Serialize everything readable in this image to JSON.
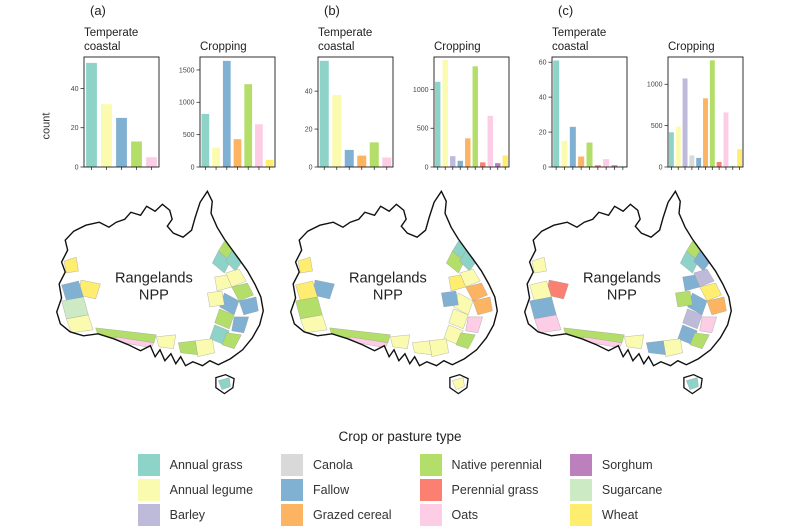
{
  "figure": {
    "y_axis_label": "count",
    "map_label": [
      "Rangelands",
      "NPP"
    ],
    "panels": [
      {
        "label": "(a)"
      },
      {
        "label": "(b)"
      },
      {
        "label": "(c)"
      }
    ],
    "legend": {
      "title": "Crop or pasture type",
      "columns": [
        [
          {
            "key": "annual_grass",
            "label": "Annual grass"
          },
          {
            "key": "annual_legume",
            "label": "Annual legume"
          },
          {
            "key": "barley",
            "label": "Barley"
          }
        ],
        [
          {
            "key": "canola",
            "label": "Canola"
          },
          {
            "key": "fallow",
            "label": "Fallow"
          },
          {
            "key": "grazed_cereal",
            "label": "Grazed cereal"
          }
        ],
        [
          {
            "key": "native_perennial",
            "label": "Native perennial"
          },
          {
            "key": "perennial_grass",
            "label": "Perennial grass"
          },
          {
            "key": "oats",
            "label": "Oats"
          }
        ],
        [
          {
            "key": "sorghum",
            "label": "Sorghum"
          },
          {
            "key": "sugarcane",
            "label": "Sugarcane"
          },
          {
            "key": "wheat",
            "label": "Wheat"
          }
        ]
      ]
    }
  },
  "palette": {
    "annual_grass": "#8dd3c7",
    "annual_legume": "#fbfbb0",
    "barley": "#bebada",
    "canola": "#d9d9d9",
    "fallow": "#80b1d3",
    "grazed_cereal": "#fdb462",
    "native_perennial": "#b3de69",
    "perennial_grass": "#fb8072",
    "oats": "#fccde5",
    "sorghum": "#bc80bd",
    "sugarcane": "#ccebc5",
    "wheat": "#ffed6f"
  },
  "chart_data": [
    {
      "panel": "a",
      "type": "bar",
      "title": "Temperate coastal",
      "ylabel": "count",
      "categories": [
        "Annual grass",
        "Annual legume",
        "Fallow",
        "Native perennial",
        "Oats"
      ],
      "values": [
        53,
        32,
        25,
        13,
        5
      ],
      "yticks": [
        0,
        20,
        40
      ],
      "ylim": [
        0,
        56
      ]
    },
    {
      "panel": "a",
      "type": "bar",
      "title": "Cropping",
      "categories": [
        "Annual grass",
        "Annual legume",
        "Fallow",
        "Grazed cereal",
        "Native perennial",
        "Oats",
        "Wheat"
      ],
      "values": [
        820,
        300,
        1640,
        430,
        1280,
        660,
        110
      ],
      "yticks": [
        0,
        500,
        1000,
        1500
      ],
      "ylim": [
        0,
        1700
      ]
    },
    {
      "panel": "b",
      "type": "bar",
      "title": "Temperate coastal",
      "categories": [
        "Annual grass",
        "Annual legume",
        "Fallow",
        "Grazed cereal",
        "Native perennial",
        "Oats"
      ],
      "values": [
        56,
        38,
        9,
        6,
        13,
        5
      ],
      "yticks": [
        0,
        20,
        40
      ],
      "ylim": [
        0,
        58
      ]
    },
    {
      "panel": "b",
      "type": "bar",
      "title": "Cropping",
      "categories": [
        "Annual grass",
        "Annual legume",
        "Barley",
        "Fallow",
        "Grazed cereal",
        "Native perennial",
        "Perennial grass",
        "Oats",
        "Sorghum",
        "Wheat"
      ],
      "values": [
        1100,
        1380,
        140,
        80,
        370,
        1300,
        60,
        660,
        50,
        150
      ],
      "yticks": [
        0,
        500,
        1000
      ],
      "ylim": [
        0,
        1420
      ]
    },
    {
      "panel": "c",
      "type": "bar",
      "title": "Temperate coastal",
      "categories": [
        "Annual grass",
        "Annual legume",
        "Fallow",
        "Grazed cereal",
        "Native perennial",
        "Perennial grass",
        "Oats",
        "Sorghum",
        "Sugarcane"
      ],
      "values": [
        61,
        15,
        23,
        6,
        14,
        1,
        4.5,
        1,
        0.5
      ],
      "yticks": [
        0,
        20,
        40,
        60
      ],
      "ylim": [
        0,
        63
      ]
    },
    {
      "panel": "c",
      "type": "bar",
      "title": "Cropping",
      "categories": [
        "Annual grass",
        "Annual legume",
        "Barley",
        "Canola",
        "Fallow",
        "Grazed cereal",
        "Native perennial",
        "Perennial grass",
        "Oats",
        "Sugarcane",
        "Wheat"
      ],
      "values": [
        420,
        490,
        1070,
        140,
        110,
        830,
        1290,
        60,
        660,
        15,
        215
      ],
      "yticks": [
        0,
        500,
        1000
      ],
      "ylim": [
        0,
        1330
      ]
    }
  ]
}
